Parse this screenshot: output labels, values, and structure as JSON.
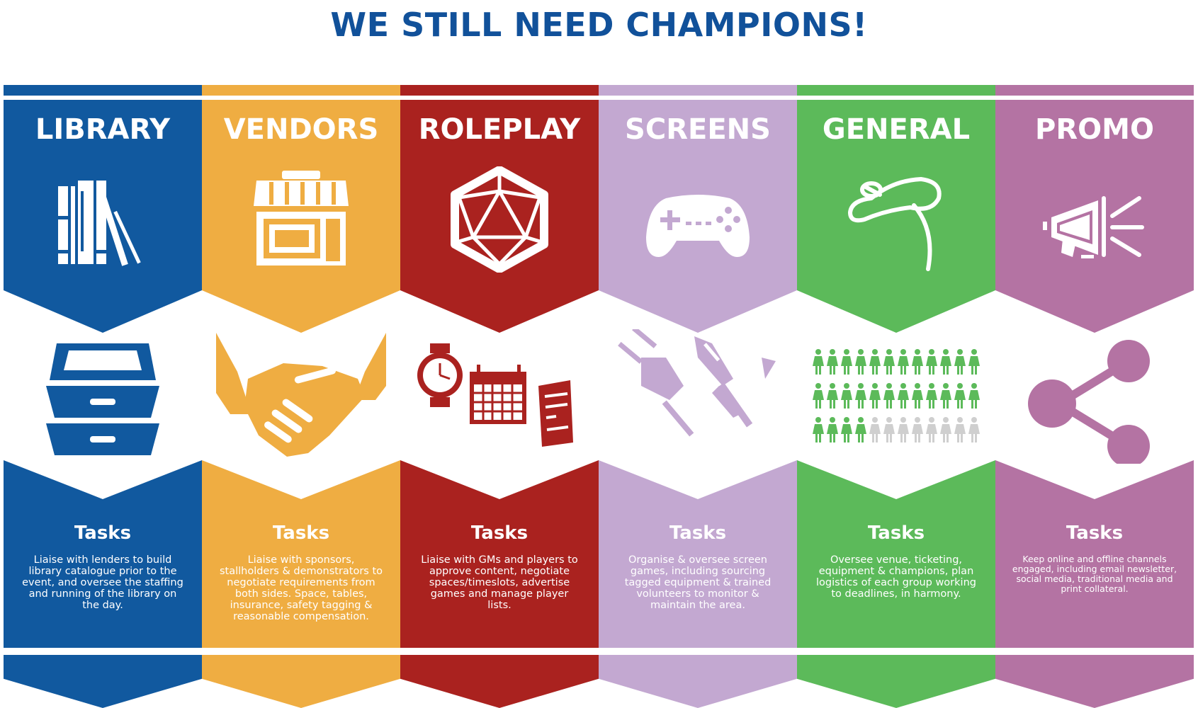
{
  "page": {
    "title": "WE STILL NEED CHAMPIONS!"
  },
  "colors": {
    "title": "#11519a",
    "library": "#11599f",
    "vendors": "#efad42",
    "roleplay": "#aa221f",
    "screens": "#c3a8d1",
    "general": "#5cba5a",
    "promo": "#b473a3",
    "inactive_figure": "#cfcfcf"
  },
  "banners": [
    {
      "key": "library",
      "title": "LIBRARY",
      "top_icon": "books-icon",
      "middle_icon": "card-catalog-drawers-icon",
      "tasks_heading": "Tasks",
      "tasks_text": "Liaise with lenders to build library catalogue prior to the event, and oversee the staffing and running of the library on the day."
    },
    {
      "key": "vendors",
      "title": "VENDORS",
      "top_icon": "storefront-icon",
      "middle_icon": "handshake-icon",
      "tasks_heading": "Tasks",
      "tasks_text": "Liaise with sponsors, stallholders & demonstrators to negotiate requirements from both sides. Space, tables, insurance, safety tagging & reasonable compensation."
    },
    {
      "key": "roleplay",
      "title": "ROLEPLAY",
      "top_icon": "d20-dice-icon",
      "middle_icon": "watch-calendar-notes-icon",
      "tasks_heading": "Tasks",
      "tasks_text": "Liaise with GMs and players to approve content, negotiate spaces/timeslots, advertise games and manage player lists."
    },
    {
      "key": "screens",
      "title": "SCREENS",
      "top_icon": "game-controller-icon",
      "middle_icon": "plug-screwdriver-tools-icon",
      "tasks_heading": "Tasks",
      "tasks_text": "Organise & oversee screen games, including sourcing tagged equipment & trained volunteers to monitor & maintain the area."
    },
    {
      "key": "general",
      "title": "GENERAL",
      "top_icon": "lasso-icon",
      "middle_icon": "people-grid-icon",
      "tasks_heading": "Tasks",
      "tasks_text": "Oversee venue, ticketing, equipment & champions, plan logistics of each group working to deadlines, in harmony."
    },
    {
      "key": "promo",
      "title": "PROMO",
      "top_icon": "megaphone-icon",
      "middle_icon": "share-icon",
      "tasks_heading": "Tasks",
      "tasks_text": "Keep online and offline channels engaged, including email newsletter, social media, traditional media and print collateral."
    }
  ],
  "people_grid": {
    "rows": 3,
    "columns": 12,
    "filled": 28
  }
}
